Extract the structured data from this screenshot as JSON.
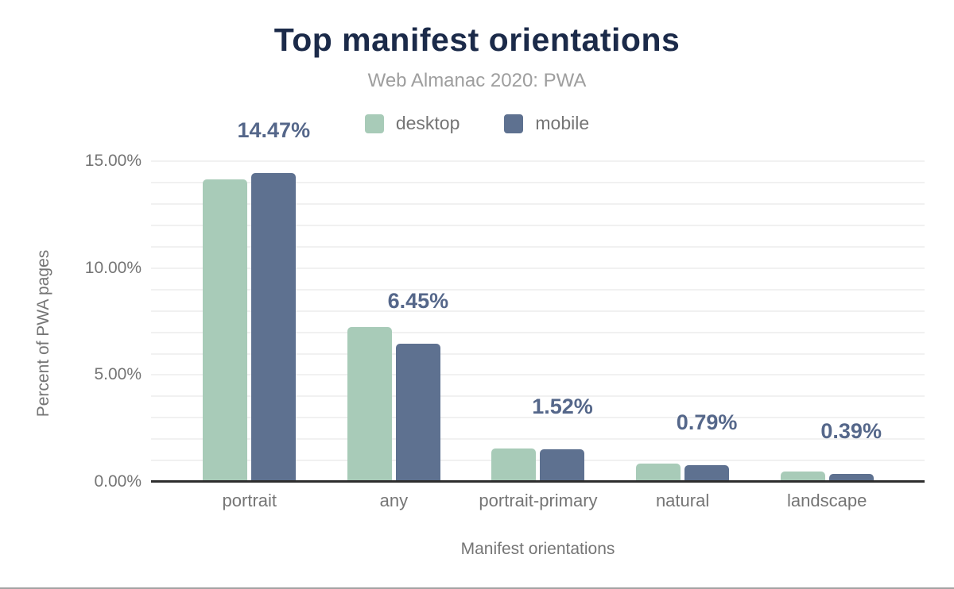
{
  "chart_data": {
    "type": "bar",
    "title": "Top manifest orientations",
    "subtitle": "Web Almanac 2020: PWA",
    "xlabel": "Manifest orientations",
    "ylabel": "Percent of PWA pages",
    "categories": [
      "portrait",
      "any",
      "portrait-primary",
      "natural",
      "landscape"
    ],
    "series": [
      {
        "name": "desktop",
        "color": "#a8cbb8",
        "values": [
          14.16,
          7.25,
          1.57,
          0.84,
          0.47
        ]
      },
      {
        "name": "mobile",
        "color": "#5e7190",
        "values": [
          14.47,
          6.45,
          1.52,
          0.79,
          0.39
        ]
      }
    ],
    "data_labels": {
      "labeled_series": "mobile",
      "values": [
        "14.47%",
        "6.45%",
        "1.52%",
        "0.79%",
        "0.39%"
      ]
    },
    "yticks": [
      {
        "value": 0,
        "label": "0.00%"
      },
      {
        "value": 5,
        "label": "5.00%"
      },
      {
        "value": 10,
        "label": "10.00%"
      },
      {
        "value": 15,
        "label": "15.00%"
      }
    ],
    "ylim": [
      0,
      15.5
    ],
    "minor_gridline_step": 1,
    "grid": "on",
    "legend_position": "top",
    "colors": {
      "title": "#1b2a49",
      "subtitle": "#9e9e9e",
      "axis_text": "#757575",
      "data_label": "#55678a",
      "gridline": "#f1f1f1",
      "axis_line": "#2e2e2e"
    }
  }
}
